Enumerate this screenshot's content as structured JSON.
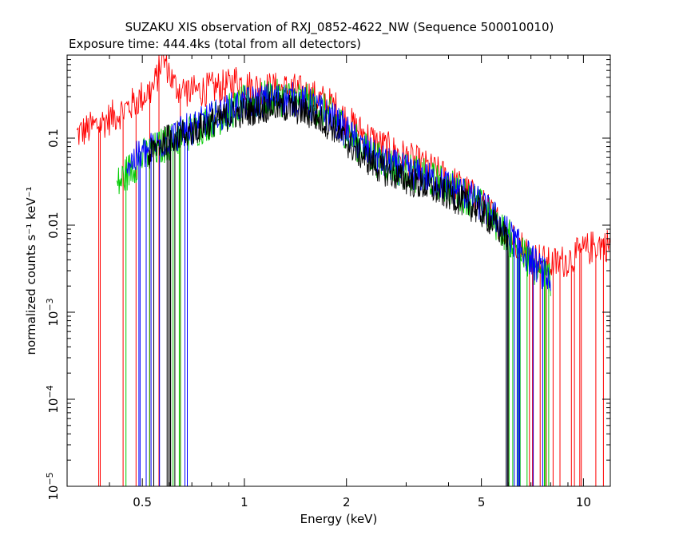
{
  "chart_data": {
    "type": "line",
    "title": "SUZAKU XIS observation of RXJ_0852-4622_NW (Sequence 500010010)",
    "subtitle": "Exposure time: 444.4ks (total from all detectors)",
    "xlabel": "Energy (keV)",
    "ylabel": "normalized counts s⁻¹ keV⁻¹",
    "x_scale": "log",
    "y_scale": "log",
    "xlim": [
      0.3,
      12
    ],
    "ylim": [
      1e-05,
      0.9
    ],
    "x_ticks": [
      {
        "value": 0.5,
        "label": "0.5"
      },
      {
        "value": 1,
        "label": "1"
      },
      {
        "value": 2,
        "label": "2"
      },
      {
        "value": 5,
        "label": "5"
      },
      {
        "value": 10,
        "label": "10"
      }
    ],
    "y_ticks": [
      {
        "value": 0.1,
        "label": "0.1"
      },
      {
        "value": 0.01,
        "label": "0.01"
      },
      {
        "value": 0.001,
        "base": "10",
        "exp": "−3"
      },
      {
        "value": 0.0001,
        "base": "10",
        "exp": "−4"
      },
      {
        "value": 1e-05,
        "base": "10",
        "exp": "−5"
      }
    ],
    "series": [
      {
        "color": "#ff0000",
        "points": [
          [
            0.32,
            0.11
          ],
          [
            0.38,
            0.15
          ],
          [
            0.45,
            0.22
          ],
          [
            0.5,
            0.3
          ],
          [
            0.54,
            0.38
          ],
          [
            0.56,
            0.6
          ],
          [
            0.57,
            0.85
          ],
          [
            0.59,
            0.7
          ],
          [
            0.62,
            0.4
          ],
          [
            0.66,
            0.36
          ],
          [
            0.7,
            0.34
          ],
          [
            0.8,
            0.37
          ],
          [
            0.9,
            0.4
          ],
          [
            0.95,
            0.48
          ],
          [
            1.0,
            0.4
          ],
          [
            1.2,
            0.37
          ],
          [
            1.4,
            0.36
          ],
          [
            1.6,
            0.3
          ],
          [
            1.85,
            0.23
          ],
          [
            2.0,
            0.16
          ],
          [
            2.2,
            0.12
          ],
          [
            2.5,
            0.085
          ],
          [
            3.0,
            0.06
          ],
          [
            3.5,
            0.045
          ],
          [
            4.0,
            0.034
          ],
          [
            4.5,
            0.025
          ],
          [
            5.0,
            0.018
          ],
          [
            5.5,
            0.012
          ],
          [
            6.0,
            0.008
          ],
          [
            6.5,
            0.006
          ],
          [
            7.0,
            0.0045
          ],
          [
            7.5,
            0.004
          ],
          [
            8.0,
            0.0035
          ],
          [
            9.0,
            0.004
          ],
          [
            10.0,
            0.005
          ],
          [
            11.0,
            0.006
          ],
          [
            12.0,
            0.006
          ]
        ],
        "noise": 0.2
      },
      {
        "color": "#00cc00",
        "points": [
          [
            0.42,
            0.028
          ],
          [
            0.45,
            0.04
          ],
          [
            0.5,
            0.06
          ],
          [
            0.6,
            0.09
          ],
          [
            0.7,
            0.12
          ],
          [
            0.8,
            0.16
          ],
          [
            0.9,
            0.2
          ],
          [
            1.0,
            0.25
          ],
          [
            1.2,
            0.29
          ],
          [
            1.4,
            0.29
          ],
          [
            1.6,
            0.24
          ],
          [
            1.85,
            0.17
          ],
          [
            2.0,
            0.12
          ],
          [
            2.2,
            0.08
          ],
          [
            2.5,
            0.055
          ],
          [
            3.0,
            0.042
          ],
          [
            3.5,
            0.034
          ],
          [
            4.0,
            0.028
          ],
          [
            4.5,
            0.022
          ],
          [
            5.0,
            0.016
          ],
          [
            5.5,
            0.011
          ],
          [
            6.0,
            0.0075
          ],
          [
            6.5,
            0.005
          ],
          [
            7.0,
            0.0035
          ],
          [
            7.5,
            0.0028
          ],
          [
            8.0,
            0.0025
          ]
        ],
        "noise": 0.22
      },
      {
        "color": "#0000ff",
        "points": [
          [
            0.45,
            0.05
          ],
          [
            0.5,
            0.065
          ],
          [
            0.6,
            0.1
          ],
          [
            0.7,
            0.13
          ],
          [
            0.8,
            0.17
          ],
          [
            0.9,
            0.21
          ],
          [
            1.0,
            0.25
          ],
          [
            1.2,
            0.28
          ],
          [
            1.4,
            0.28
          ],
          [
            1.6,
            0.23
          ],
          [
            1.85,
            0.16
          ],
          [
            2.0,
            0.12
          ],
          [
            2.2,
            0.08
          ],
          [
            2.5,
            0.055
          ],
          [
            3.0,
            0.042
          ],
          [
            3.5,
            0.034
          ],
          [
            4.0,
            0.028
          ],
          [
            4.5,
            0.023
          ],
          [
            5.0,
            0.017
          ],
          [
            5.5,
            0.012
          ],
          [
            6.0,
            0.008
          ],
          [
            6.5,
            0.0055
          ],
          [
            7.0,
            0.004
          ],
          [
            7.5,
            0.003
          ],
          [
            8.0,
            0.0022
          ]
        ],
        "noise": 0.2
      },
      {
        "color": "#000000",
        "points": [
          [
            0.52,
            0.06
          ],
          [
            0.55,
            0.08
          ],
          [
            0.6,
            0.1
          ],
          [
            0.7,
            0.12
          ],
          [
            0.8,
            0.15
          ],
          [
            0.9,
            0.18
          ],
          [
            1.0,
            0.2
          ],
          [
            1.2,
            0.23
          ],
          [
            1.4,
            0.22
          ],
          [
            1.6,
            0.18
          ],
          [
            1.85,
            0.13
          ],
          [
            2.0,
            0.09
          ],
          [
            2.2,
            0.065
          ],
          [
            2.5,
            0.045
          ],
          [
            3.0,
            0.033
          ],
          [
            3.5,
            0.027
          ],
          [
            4.0,
            0.022
          ],
          [
            4.5,
            0.018
          ],
          [
            5.0,
            0.014
          ],
          [
            5.5,
            0.01
          ],
          [
            6.0,
            0.0065
          ]
        ],
        "noise": 0.18
      }
    ],
    "grid": false,
    "legend": "none"
  }
}
